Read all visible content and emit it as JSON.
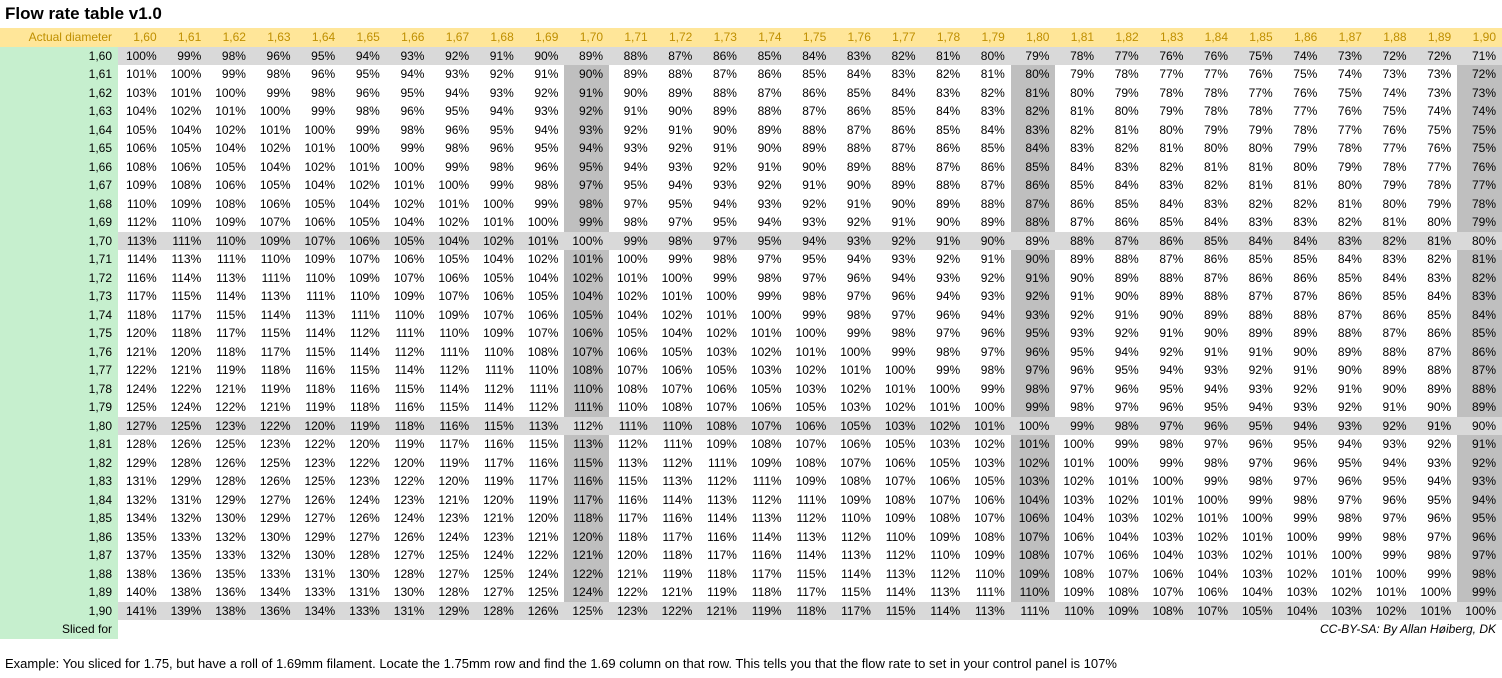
{
  "title": "Flow rate table v1.0",
  "credit": "CC-BY-SA: By Allan Høiberg, DK",
  "example_note": "Example: You sliced for 1.75, but have a roll of 1.69mm filament. Locate the 1.75mm row and find the 1.69 column on that row. This tells you that the flow rate to set in your control panel is 107%",
  "colors": {
    "header_bg": "#FFE699",
    "header_text": "#BF8F00",
    "label_bg": "#C6EFCE",
    "gray_row_bg": "#D9D9D9",
    "gray_col_bg": "#BFBFBF",
    "cell_text": "#000000"
  },
  "table": {
    "corner_label": "Actual diameter",
    "footer_label": "Sliced for",
    "value_suffix": "%",
    "column_headers": [
      "1,60",
      "1,61",
      "1,62",
      "1,63",
      "1,64",
      "1,65",
      "1,66",
      "1,67",
      "1,68",
      "1,69",
      "1,70",
      "1,71",
      "1,72",
      "1,73",
      "1,74",
      "1,75",
      "1,76",
      "1,77",
      "1,78",
      "1,79",
      "1,80",
      "1,81",
      "1,82",
      "1,83",
      "1,84",
      "1,85",
      "1,86",
      "1,87",
      "1,88",
      "1,89",
      "1,90"
    ],
    "row_headers": [
      "1,60",
      "1,61",
      "1,62",
      "1,63",
      "1,64",
      "1,65",
      "1,66",
      "1,67",
      "1,68",
      "1,69",
      "1,70",
      "1,71",
      "1,72",
      "1,73",
      "1,74",
      "1,75",
      "1,76",
      "1,77",
      "1,78",
      "1,79",
      "1,80",
      "1,81",
      "1,82",
      "1,83",
      "1,84",
      "1,85",
      "1,86",
      "1,87",
      "1,88",
      "1,89",
      "1,90"
    ],
    "gray_row_headers": [
      "1,60",
      "1,70",
      "1,80",
      "1,90"
    ],
    "gray_column_headers": [
      "1,70",
      "1,80",
      "1,90"
    ],
    "values": [
      [
        100,
        99,
        98,
        96,
        95,
        94,
        93,
        92,
        91,
        90,
        89,
        88,
        87,
        86,
        85,
        84,
        83,
        82,
        81,
        80,
        79,
        78,
        77,
        76,
        76,
        75,
        74,
        73,
        72,
        72,
        71
      ],
      [
        101,
        100,
        99,
        98,
        96,
        95,
        94,
        93,
        92,
        91,
        90,
        89,
        88,
        87,
        86,
        85,
        84,
        83,
        82,
        81,
        80,
        79,
        78,
        77,
        77,
        76,
        75,
        74,
        73,
        73,
        72
      ],
      [
        103,
        101,
        100,
        99,
        98,
        96,
        95,
        94,
        93,
        92,
        91,
        90,
        89,
        88,
        87,
        86,
        85,
        84,
        83,
        82,
        81,
        80,
        79,
        78,
        78,
        77,
        76,
        75,
        74,
        73,
        73
      ],
      [
        104,
        102,
        101,
        100,
        99,
        98,
        96,
        95,
        94,
        93,
        92,
        91,
        90,
        89,
        88,
        87,
        86,
        85,
        84,
        83,
        82,
        81,
        80,
        79,
        78,
        78,
        77,
        76,
        75,
        74,
        74
      ],
      [
        105,
        104,
        102,
        101,
        100,
        99,
        98,
        96,
        95,
        94,
        93,
        92,
        91,
        90,
        89,
        88,
        87,
        86,
        85,
        84,
        83,
        82,
        81,
        80,
        79,
        79,
        78,
        77,
        76,
        75,
        75
      ],
      [
        106,
        105,
        104,
        102,
        101,
        100,
        99,
        98,
        96,
        95,
        94,
        93,
        92,
        91,
        90,
        89,
        88,
        87,
        86,
        85,
        84,
        83,
        82,
        81,
        80,
        80,
        79,
        78,
        77,
        76,
        75
      ],
      [
        108,
        106,
        105,
        104,
        102,
        101,
        100,
        99,
        98,
        96,
        95,
        94,
        93,
        92,
        91,
        90,
        89,
        88,
        87,
        86,
        85,
        84,
        83,
        82,
        81,
        81,
        80,
        79,
        78,
        77,
        76
      ],
      [
        109,
        108,
        106,
        105,
        104,
        102,
        101,
        100,
        99,
        98,
        97,
        95,
        94,
        93,
        92,
        91,
        90,
        89,
        88,
        87,
        86,
        85,
        84,
        83,
        82,
        81,
        81,
        80,
        79,
        78,
        77
      ],
      [
        110,
        109,
        108,
        106,
        105,
        104,
        102,
        101,
        100,
        99,
        98,
        97,
        95,
        94,
        93,
        92,
        91,
        90,
        89,
        88,
        87,
        86,
        85,
        84,
        83,
        82,
        82,
        81,
        80,
        79,
        78
      ],
      [
        112,
        110,
        109,
        107,
        106,
        105,
        104,
        102,
        101,
        100,
        99,
        98,
        97,
        95,
        94,
        93,
        92,
        91,
        90,
        89,
        88,
        87,
        86,
        85,
        84,
        83,
        83,
        82,
        81,
        80,
        79
      ],
      [
        113,
        111,
        110,
        109,
        107,
        106,
        105,
        104,
        102,
        101,
        100,
        99,
        98,
        97,
        95,
        94,
        93,
        92,
        91,
        90,
        89,
        88,
        87,
        86,
        85,
        84,
        84,
        83,
        82,
        81,
        80
      ],
      [
        114,
        113,
        111,
        110,
        109,
        107,
        106,
        105,
        104,
        102,
        101,
        100,
        99,
        98,
        97,
        95,
        94,
        93,
        92,
        91,
        90,
        89,
        88,
        87,
        86,
        85,
        85,
        84,
        83,
        82,
        81
      ],
      [
        116,
        114,
        113,
        111,
        110,
        109,
        107,
        106,
        105,
        104,
        102,
        101,
        100,
        99,
        98,
        97,
        96,
        94,
        93,
        92,
        91,
        90,
        89,
        88,
        87,
        86,
        86,
        85,
        84,
        83,
        82
      ],
      [
        117,
        115,
        114,
        113,
        111,
        110,
        109,
        107,
        106,
        105,
        104,
        102,
        101,
        100,
        99,
        98,
        97,
        96,
        94,
        93,
        92,
        91,
        90,
        89,
        88,
        87,
        87,
        86,
        85,
        84,
        83
      ],
      [
        118,
        117,
        115,
        114,
        113,
        111,
        110,
        109,
        107,
        106,
        105,
        104,
        102,
        101,
        100,
        99,
        98,
        97,
        96,
        94,
        93,
        92,
        91,
        90,
        89,
        88,
        88,
        87,
        86,
        85,
        84
      ],
      [
        120,
        118,
        117,
        115,
        114,
        112,
        111,
        110,
        109,
        107,
        106,
        105,
        104,
        102,
        101,
        100,
        99,
        98,
        97,
        96,
        95,
        93,
        92,
        91,
        90,
        89,
        89,
        88,
        87,
        86,
        85
      ],
      [
        121,
        120,
        118,
        117,
        115,
        114,
        112,
        111,
        110,
        108,
        107,
        106,
        105,
        103,
        102,
        101,
        100,
        99,
        98,
        97,
        96,
        95,
        94,
        92,
        91,
        91,
        90,
        89,
        88,
        87,
        86
      ],
      [
        122,
        121,
        119,
        118,
        116,
        115,
        114,
        112,
        111,
        110,
        108,
        107,
        106,
        105,
        103,
        102,
        101,
        100,
        99,
        98,
        97,
        96,
        95,
        94,
        93,
        92,
        91,
        90,
        89,
        88,
        87
      ],
      [
        124,
        122,
        121,
        119,
        118,
        116,
        115,
        114,
        112,
        111,
        110,
        108,
        107,
        106,
        105,
        103,
        102,
        101,
        100,
        99,
        98,
        97,
        96,
        95,
        94,
        93,
        92,
        91,
        90,
        89,
        88
      ],
      [
        125,
        124,
        122,
        121,
        119,
        118,
        116,
        115,
        114,
        112,
        111,
        110,
        108,
        107,
        106,
        105,
        103,
        102,
        101,
        100,
        99,
        98,
        97,
        96,
        95,
        94,
        93,
        92,
        91,
        90,
        89
      ],
      [
        127,
        125,
        123,
        122,
        120,
        119,
        118,
        116,
        115,
        113,
        112,
        111,
        110,
        108,
        107,
        106,
        105,
        103,
        102,
        101,
        100,
        99,
        98,
        97,
        96,
        95,
        94,
        93,
        92,
        91,
        90
      ],
      [
        128,
        126,
        125,
        123,
        122,
        120,
        119,
        117,
        116,
        115,
        113,
        112,
        111,
        109,
        108,
        107,
        106,
        105,
        103,
        102,
        101,
        100,
        99,
        98,
        97,
        96,
        95,
        94,
        93,
        92,
        91
      ],
      [
        129,
        128,
        126,
        125,
        123,
        122,
        120,
        119,
        117,
        116,
        115,
        113,
        112,
        111,
        109,
        108,
        107,
        106,
        105,
        103,
        102,
        101,
        100,
        99,
        98,
        97,
        96,
        95,
        94,
        93,
        92
      ],
      [
        131,
        129,
        128,
        126,
        125,
        123,
        122,
        120,
        119,
        117,
        116,
        115,
        113,
        112,
        111,
        109,
        108,
        107,
        106,
        105,
        103,
        102,
        101,
        100,
        99,
        98,
        97,
        96,
        95,
        94,
        93
      ],
      [
        132,
        131,
        129,
        127,
        126,
        124,
        123,
        121,
        120,
        119,
        117,
        116,
        114,
        113,
        112,
        111,
        109,
        108,
        107,
        106,
        104,
        103,
        102,
        101,
        100,
        99,
        98,
        97,
        96,
        95,
        94
      ],
      [
        134,
        132,
        130,
        129,
        127,
        126,
        124,
        123,
        121,
        120,
        118,
        117,
        116,
        114,
        113,
        112,
        110,
        109,
        108,
        107,
        106,
        104,
        103,
        102,
        101,
        100,
        99,
        98,
        97,
        96,
        95
      ],
      [
        135,
        133,
        132,
        130,
        129,
        127,
        126,
        124,
        123,
        121,
        120,
        118,
        117,
        116,
        114,
        113,
        112,
        110,
        109,
        108,
        107,
        106,
        104,
        103,
        102,
        101,
        100,
        99,
        98,
        97,
        96
      ],
      [
        137,
        135,
        133,
        132,
        130,
        128,
        127,
        125,
        124,
        122,
        121,
        120,
        118,
        117,
        116,
        114,
        113,
        112,
        110,
        109,
        108,
        107,
        106,
        104,
        103,
        102,
        101,
        100,
        99,
        98,
        97
      ],
      [
        138,
        136,
        135,
        133,
        131,
        130,
        128,
        127,
        125,
        124,
        122,
        121,
        119,
        118,
        117,
        115,
        114,
        113,
        112,
        110,
        109,
        108,
        107,
        106,
        104,
        103,
        102,
        101,
        100,
        99,
        98
      ],
      [
        140,
        138,
        136,
        134,
        133,
        131,
        130,
        128,
        127,
        125,
        124,
        122,
        121,
        119,
        118,
        117,
        115,
        114,
        113,
        111,
        110,
        109,
        108,
        107,
        106,
        104,
        103,
        102,
        101,
        100,
        99
      ],
      [
        141,
        139,
        138,
        136,
        134,
        133,
        131,
        129,
        128,
        126,
        125,
        123,
        122,
        121,
        119,
        118,
        117,
        115,
        114,
        113,
        111,
        110,
        109,
        108,
        107,
        105,
        104,
        103,
        102,
        101,
        100
      ]
    ]
  }
}
